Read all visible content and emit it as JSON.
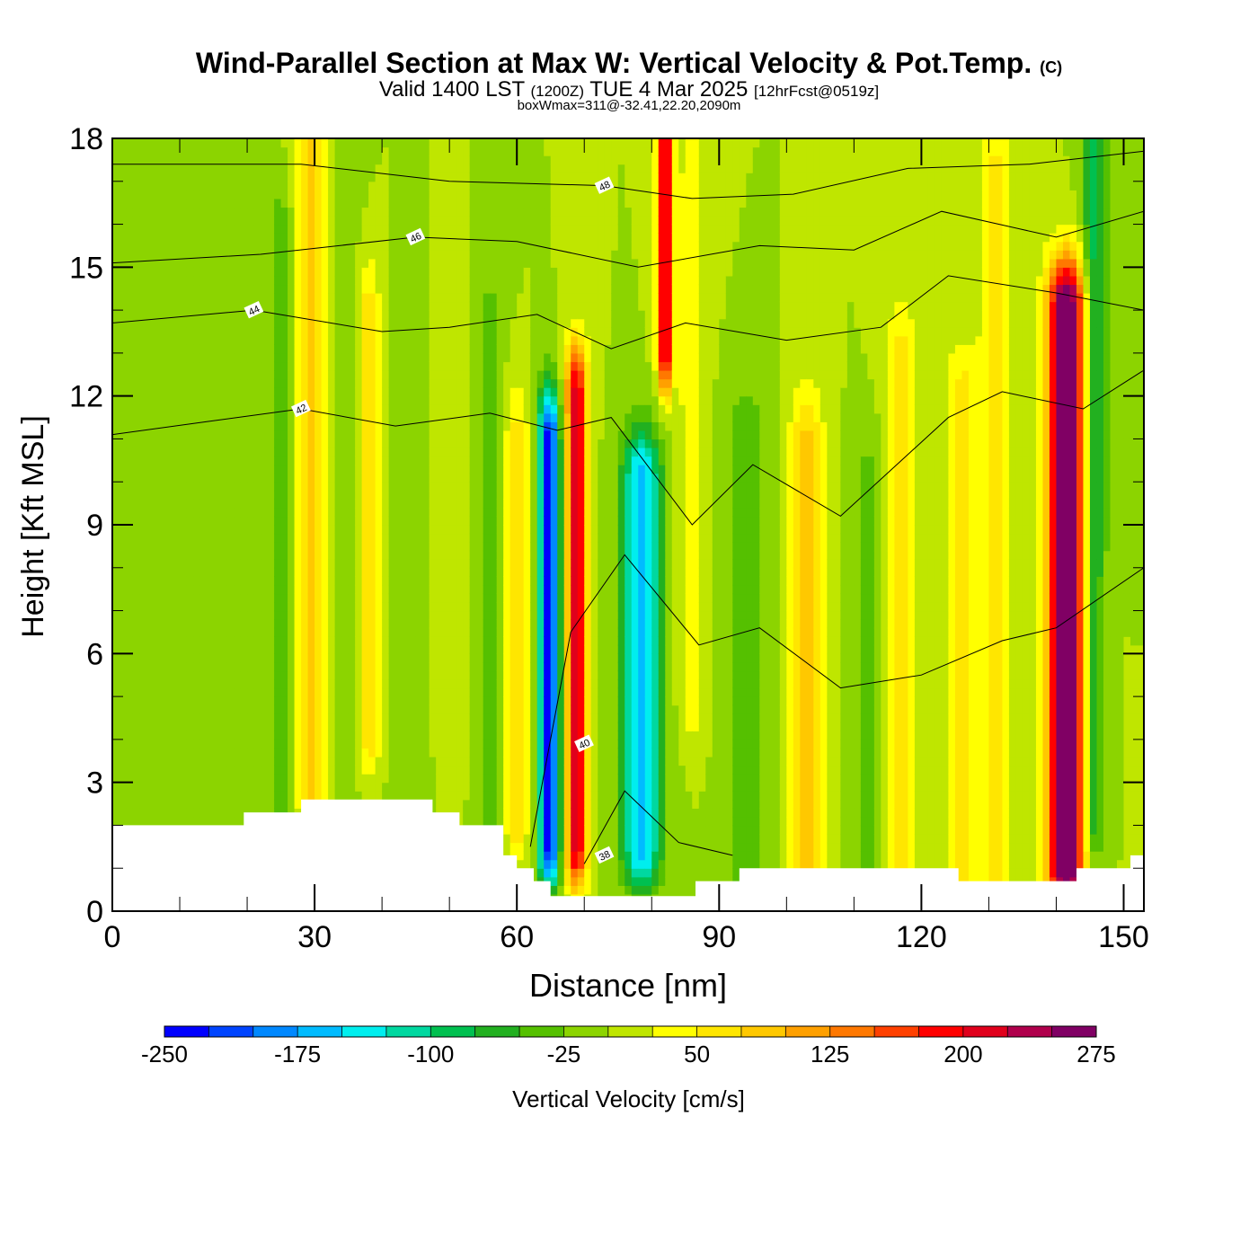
{
  "header": {
    "title": "Wind-Parallel Section at Max W: Vertical Velocity & Pot.Temp.",
    "copyright": "(C)",
    "valid_prefix": "Valid 1400 LST",
    "valid_zulu": "(1200Z)",
    "valid_date": "TUE 4 Mar 2025",
    "forecast": "[12hrFcst@0519z]",
    "box_info": "boxWmax=311@-32.41,22.20,2090m"
  },
  "chart_data": {
    "type": "heatmap",
    "xlabel": "Distance [nm]",
    "ylabel": "Height [Kft MSL]",
    "xlim": [
      0,
      153
    ],
    "ylim": [
      0,
      18
    ],
    "x_ticks": [
      0,
      30,
      60,
      90,
      120,
      150
    ],
    "y_ticks": [
      0,
      3,
      6,
      9,
      12,
      15,
      18
    ],
    "colorbar": {
      "label": "Vertical Velocity [cm/s]",
      "min": -250,
      "max": 300,
      "step": 25,
      "tick_labels": [
        "-250",
        "-175",
        "-100",
        "-25",
        "50",
        "125",
        "200",
        "275"
      ],
      "colors": [
        "#0000ff",
        "#0044ff",
        "#0088ff",
        "#00bbff",
        "#00eeee",
        "#00d8a0",
        "#00c050",
        "#22b020",
        "#55c000",
        "#8cd400",
        "#bfe600",
        "#ffff00",
        "#ffe600",
        "#ffc800",
        "#ffa000",
        "#ff7800",
        "#ff4000",
        "#ff0000",
        "#e0001c",
        "#b0004c",
        "#800064"
      ]
    },
    "background_value": 0,
    "w_columns": [
      {
        "x": 4,
        "half_width": 3,
        "y_from": 0,
        "y_to": 18,
        "value": -10
      },
      {
        "x": 19,
        "half_width": 2.2,
        "y_from": 3,
        "y_to": 16,
        "value": -20
      },
      {
        "x": 25,
        "half_width": 1.8,
        "y_from": 2,
        "y_to": 16,
        "value": -35
      },
      {
        "x": 29.5,
        "half_width": 2.3,
        "y_from": 3,
        "y_to": 18,
        "value": 90
      },
      {
        "x": 35,
        "half_width": 1.8,
        "y_from": 2,
        "y_to": 17,
        "value": -15
      },
      {
        "x": 38,
        "half_width": 1.8,
        "y_from": 4,
        "y_to": 14,
        "value": 60
      },
      {
        "x": 44,
        "half_width": 2.5,
        "y_from": 3,
        "y_to": 14,
        "value": -25
      },
      {
        "x": 50,
        "half_width": 2,
        "y_from": 4,
        "y_to": 14,
        "value": 20
      },
      {
        "x": 56,
        "half_width": 1.8,
        "y_from": 2,
        "y_to": 14,
        "value": -30
      },
      {
        "x": 60,
        "half_width": 1.8,
        "y_from": 2,
        "y_to": 11,
        "value": 60
      },
      {
        "x": 64.8,
        "half_width": 1.6,
        "y_from": 1.5,
        "y_to": 11,
        "value": -240
      },
      {
        "x": 68.8,
        "half_width": 1.6,
        "y_from": 1.5,
        "y_to": 12,
        "value": 215
      },
      {
        "x": 78.5,
        "half_width": 2.8,
        "y_from": 1.5,
        "y_to": 10,
        "value": -170
      },
      {
        "x": 82,
        "half_width": 1.1,
        "y_from": 13,
        "y_to": 18,
        "value": 220
      },
      {
        "x": 86,
        "half_width": 1.8,
        "y_from": 5,
        "y_to": 17,
        "value": 50
      },
      {
        "x": 94,
        "half_width": 2.8,
        "y_from": 1,
        "y_to": 11,
        "value": -45
      },
      {
        "x": 103,
        "half_width": 2.4,
        "y_from": 1,
        "y_to": 11,
        "value": 80
      },
      {
        "x": 112,
        "half_width": 2.2,
        "y_from": 1,
        "y_to": 10,
        "value": -35
      },
      {
        "x": 117,
        "half_width": 2.2,
        "y_from": 1,
        "y_to": 13,
        "value": 60
      },
      {
        "x": 126,
        "half_width": 2.4,
        "y_from": 1,
        "y_to": 12,
        "value": 60
      },
      {
        "x": 131,
        "half_width": 2.2,
        "y_from": 1,
        "y_to": 17,
        "value": 65
      },
      {
        "x": 141.5,
        "half_width": 2.8,
        "y_from": 1,
        "y_to": 14,
        "value": 300
      },
      {
        "x": 145.5,
        "half_width": 1.6,
        "y_from": 2,
        "y_to": 18,
        "value": -90
      },
      {
        "x": 148.5,
        "half_width": 1.8,
        "y_from": 9,
        "y_to": 18,
        "value": -20
      }
    ],
    "theta_contours": [
      {
        "label": "38",
        "label_x": 73,
        "label_y": 1.3,
        "points": [
          [
            70,
            1.1
          ],
          [
            76,
            2.8
          ],
          [
            84,
            1.6
          ],
          [
            92,
            1.3
          ]
        ]
      },
      {
        "label": "40",
        "label_x": 70,
        "label_y": 3.9,
        "points": [
          [
            62,
            1.5
          ],
          [
            68,
            6.5
          ],
          [
            76,
            8.3
          ],
          [
            87,
            6.2
          ],
          [
            96,
            6.6
          ],
          [
            108,
            5.2
          ],
          [
            120,
            5.5
          ],
          [
            132,
            6.3
          ],
          [
            140,
            6.6
          ],
          [
            153,
            8.0
          ]
        ]
      },
      {
        "label": "42",
        "label_x": 28,
        "label_y": 11.7,
        "points": [
          [
            0,
            11.1
          ],
          [
            14,
            11.4
          ],
          [
            28,
            11.7
          ],
          [
            42,
            11.3
          ],
          [
            56,
            11.6
          ],
          [
            66,
            11.2
          ],
          [
            74,
            11.5
          ],
          [
            86,
            9.0
          ],
          [
            95,
            10.4
          ],
          [
            108,
            9.2
          ],
          [
            124,
            11.5
          ],
          [
            132,
            12.1
          ],
          [
            144,
            11.7
          ],
          [
            153,
            12.6
          ]
        ]
      },
      {
        "label": "44",
        "label_x": 21,
        "label_y": 14.0,
        "points": [
          [
            0,
            13.7
          ],
          [
            21,
            14.0
          ],
          [
            40,
            13.5
          ],
          [
            50,
            13.6
          ],
          [
            63,
            13.9
          ],
          [
            74,
            13.1
          ],
          [
            85,
            13.7
          ],
          [
            100,
            13.3
          ],
          [
            114,
            13.6
          ],
          [
            124,
            14.8
          ],
          [
            140,
            14.4
          ],
          [
            153,
            14.0
          ]
        ]
      },
      {
        "label": "46",
        "label_x": 45,
        "label_y": 15.7,
        "points": [
          [
            0,
            15.1
          ],
          [
            22,
            15.3
          ],
          [
            45,
            15.7
          ],
          [
            60,
            15.6
          ],
          [
            78,
            15.0
          ],
          [
            96,
            15.5
          ],
          [
            110,
            15.4
          ],
          [
            123,
            16.3
          ],
          [
            140,
            15.7
          ],
          [
            153,
            16.3
          ]
        ]
      },
      {
        "label": "48",
        "label_x": 73,
        "label_y": 16.9,
        "points": [
          [
            0,
            17.4
          ],
          [
            28,
            17.4
          ],
          [
            50,
            17.0
          ],
          [
            73,
            16.9
          ],
          [
            86,
            16.6
          ],
          [
            101,
            16.7
          ],
          [
            118,
            17.3
          ],
          [
            136,
            17.4
          ],
          [
            153,
            17.7
          ]
        ]
      }
    ],
    "terrain_profile": [
      [
        0,
        2.0
      ],
      [
        19.5,
        2.0
      ],
      [
        19.5,
        2.3
      ],
      [
        28,
        2.3
      ],
      [
        28,
        2.6
      ],
      [
        47.5,
        2.6
      ],
      [
        47.5,
        2.3
      ],
      [
        51.5,
        2.3
      ],
      [
        51.5,
        2.0
      ],
      [
        58,
        2.0
      ],
      [
        58,
        1.3
      ],
      [
        60,
        1.3
      ],
      [
        60,
        1.0
      ],
      [
        62.5,
        1.0
      ],
      [
        62.5,
        0.7
      ],
      [
        65,
        0.7
      ],
      [
        65,
        0.35
      ],
      [
        86.5,
        0.35
      ],
      [
        86.5,
        0.7
      ],
      [
        93,
        0.7
      ],
      [
        93,
        1.0
      ],
      [
        125.5,
        1.0
      ],
      [
        125.5,
        0.7
      ],
      [
        143,
        0.7
      ],
      [
        143,
        1.0
      ],
      [
        151,
        1.0
      ],
      [
        151,
        1.3
      ],
      [
        153,
        1.3
      ]
    ]
  }
}
